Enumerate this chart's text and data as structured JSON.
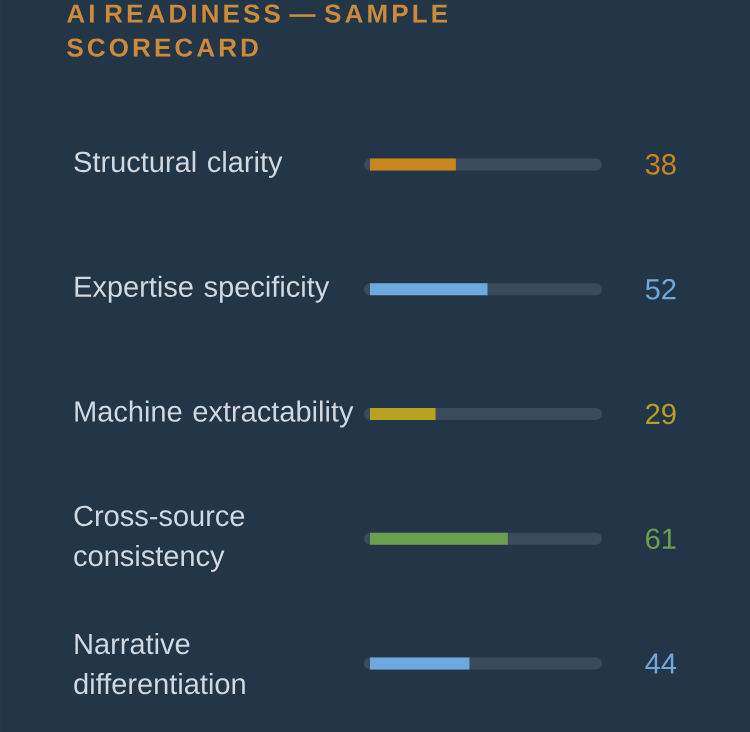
{
  "chart_data": {
    "type": "bar",
    "orientation": "horizontal",
    "title": "AI READINESS — SAMPLE SCORECARD",
    "categories": [
      "Structural clarity",
      "Expertise specificity",
      "Machine extractability",
      "Cross-source consistency",
      "Narrative differentiation"
    ],
    "values": [
      38,
      52,
      29,
      61,
      44
    ],
    "colors": [
      "#c8861e",
      "#6fa8dc",
      "#b8a020",
      "#6a9f4f",
      "#6fa8dc"
    ],
    "xlim": [
      0,
      100
    ],
    "tick_labels": "y",
    "data_labels": true
  }
}
